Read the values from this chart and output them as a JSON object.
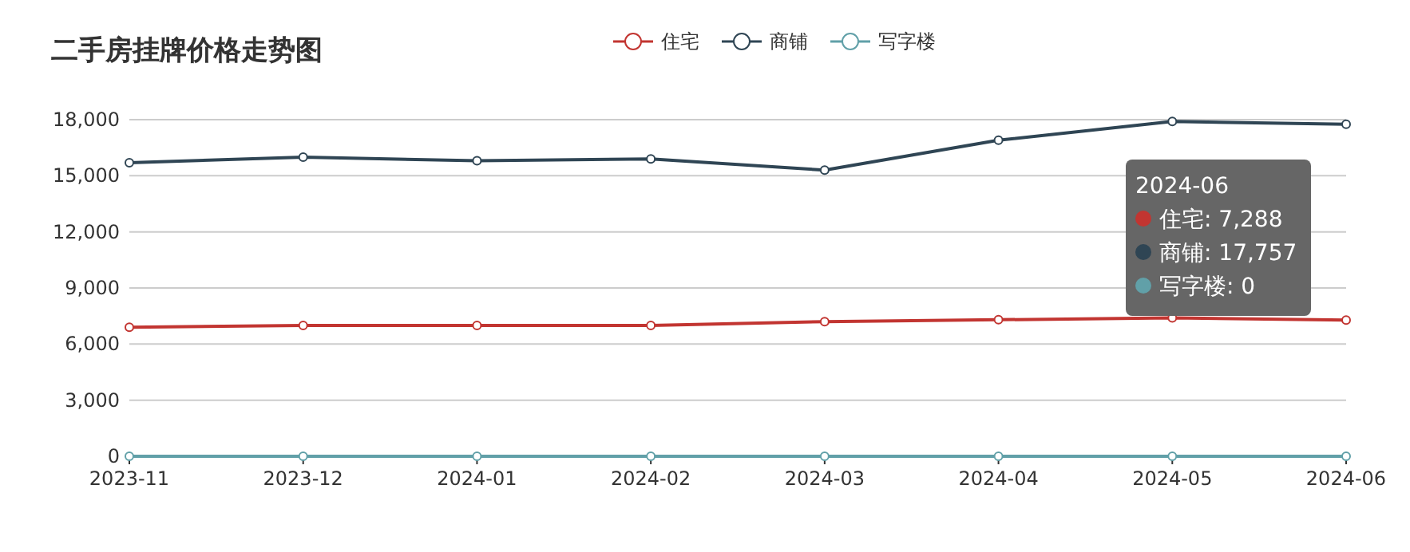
{
  "chart_data": {
    "type": "line",
    "title": "二手房挂牌价格走势图",
    "categories": [
      "2023-11",
      "2023-12",
      "2024-01",
      "2024-02",
      "2024-03",
      "2024-04",
      "2024-05",
      "2024-06"
    ],
    "series": [
      {
        "name": "住宅",
        "color": "#c23531",
        "values": [
          6900,
          7000,
          7000,
          7000,
          7200,
          7300,
          7400,
          7288
        ]
      },
      {
        "name": "商铺",
        "color": "#2f4554",
        "values": [
          15700,
          16000,
          15800,
          15900,
          15300,
          16900,
          17900,
          17757
        ]
      },
      {
        "name": "写字楼",
        "color": "#61a0a8",
        "values": [
          0,
          0,
          0,
          0,
          0,
          0,
          0,
          0
        ]
      }
    ],
    "ylim": [
      0,
      18000
    ],
    "yticks": [
      {
        "value": 0,
        "label": "0"
      },
      {
        "value": 3000,
        "label": "3,000"
      },
      {
        "value": 6000,
        "label": "6,000"
      },
      {
        "value": 9000,
        "label": "9,000"
      },
      {
        "value": 12000,
        "label": "12,000"
      },
      {
        "value": 15000,
        "label": "15,000"
      },
      {
        "value": 18000,
        "label": "18,000"
      }
    ],
    "grid": "y",
    "legend": "top",
    "marker": "circle",
    "annotations": [
      "2024-06",
      "住宅: 7,288",
      "商铺: 17,757",
      "写字楼: 0"
    ]
  }
}
